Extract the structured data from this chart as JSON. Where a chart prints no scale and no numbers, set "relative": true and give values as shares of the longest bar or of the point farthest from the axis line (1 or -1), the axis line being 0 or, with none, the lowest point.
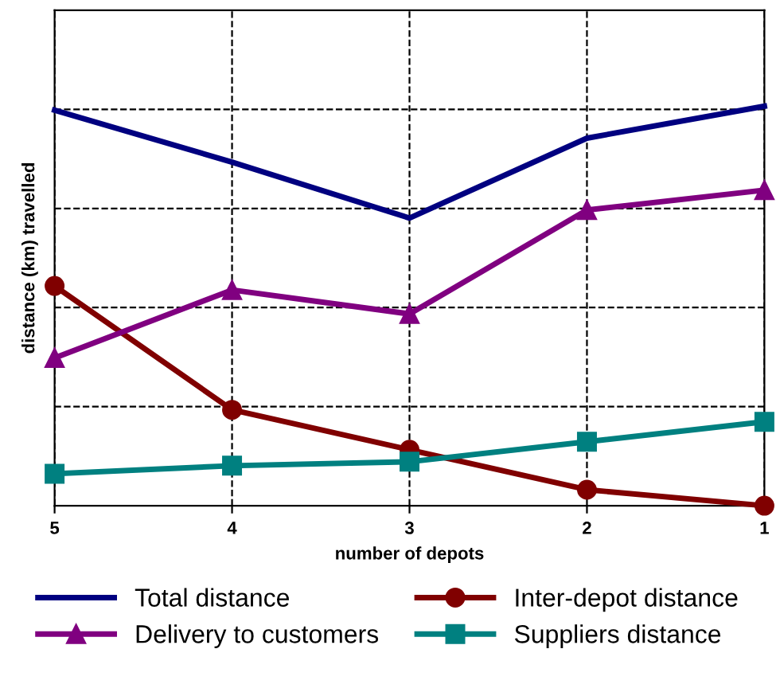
{
  "chart_data": {
    "type": "line",
    "relative": true,
    "xlabel": "number of depots",
    "ylabel": "distance (km) travelled",
    "categories": [
      "5",
      "4",
      "3",
      "2",
      "1"
    ],
    "grid": true,
    "legend": "bottom",
    "line_style": "solid",
    "series": [
      {
        "name": "Total distance",
        "color": "#000080",
        "marker": "none",
        "values": [
          0.99,
          0.86,
          0.72,
          0.92,
          1
        ]
      },
      {
        "name": "Inter-depot distance",
        "color": "#800000",
        "marker": "circle",
        "values": [
          0.55,
          0.24,
          0.14,
          0.04,
          0.0
        ]
      },
      {
        "name": "Delivery to customers",
        "color": "#800080",
        "marker": "triangle",
        "values": [
          0.37,
          0.54,
          0.48,
          0.74,
          0.79
        ]
      },
      {
        "name": "Suppliers distance",
        "color": "#008080",
        "marker": "square",
        "values": [
          0.08,
          0.1,
          0.11,
          0.16,
          0.21
        ]
      }
    ]
  }
}
